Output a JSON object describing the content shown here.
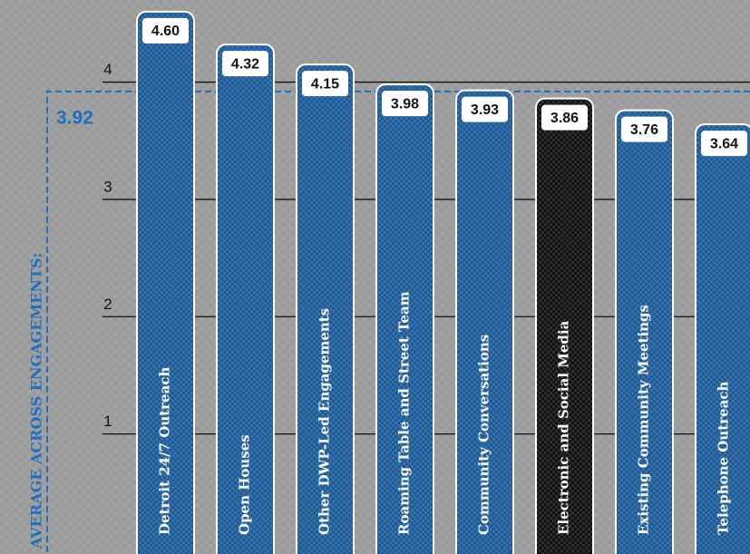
{
  "chart_data": {
    "type": "bar",
    "categories": [
      "Detroit 24/7 Outreach",
      "Open Houses",
      "Other DWP-Led Engagements",
      "Roaming Table and Street Team",
      "Community Conversations",
      "Electronic and Social Media",
      "Existing Community Meetings",
      "Telephone Outreach"
    ],
    "values": [
      4.6,
      4.32,
      4.15,
      3.98,
      3.93,
      3.86,
      3.76,
      3.64
    ],
    "value_labels": [
      "4.60",
      "4.32",
      "4.15",
      "3.98",
      "3.93",
      "3.86",
      "3.76",
      "3.64"
    ],
    "colors": [
      "#1d5b98",
      "#1d5b98",
      "#1d5b98",
      "#1d5b98",
      "#1d5b98",
      "#111111",
      "#1d5b98",
      "#1d5b98"
    ],
    "average": {
      "label": "AVERAGE ACROSS ENGAGEMENTS:",
      "value": 3.92,
      "color": "#1f6fc0"
    },
    "ylim": [
      0,
      4.7
    ],
    "yticks": [
      1,
      2,
      3,
      4
    ],
    "grid": true
  }
}
